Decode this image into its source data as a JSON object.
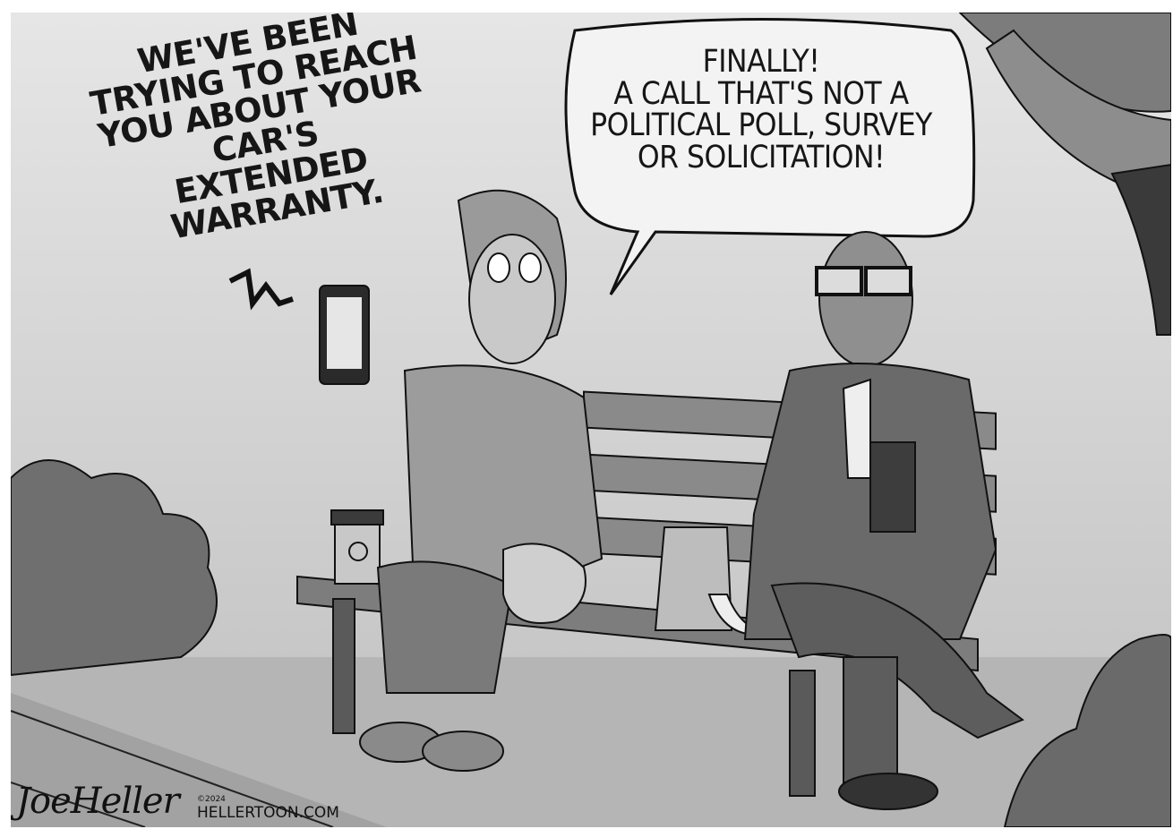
{
  "caption_left": {
    "line1": "WE'VE BEEN",
    "line2": "TRYING TO REACH",
    "line3": "YOU ABOUT YOUR CAR'S",
    "line4": "EXTENDED WARRANTY."
  },
  "caption_right": {
    "line1": "FINALLY!",
    "line2": "A CALL THAT'S NOT A",
    "line3": "POLITICAL POLL, SURVEY",
    "line4": "OR SOLICITATION!"
  },
  "signature": "JoeHeller",
  "copyright": "©2024",
  "website": "HELLERTOON.COM"
}
